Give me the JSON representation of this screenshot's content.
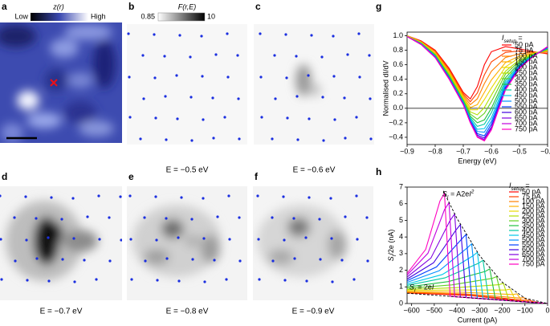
{
  "panels": [
    {
      "label": "a",
      "colorbar_title": "z(r)",
      "colorbar_low": "Low",
      "colorbar_high": "High"
    },
    {
      "label": "b",
      "colorbar_title": "F(r,E)",
      "colorbar_range": [
        0.85,
        10
      ],
      "caption": "E = −0.5 eV"
    },
    {
      "label": "c",
      "caption": "E = −0.6 eV"
    },
    {
      "label": "d",
      "caption": "E = −0.7 eV"
    },
    {
      "label": "e",
      "caption": "E = −0.8 eV"
    },
    {
      "label": "f",
      "caption": "E = −0.9 eV"
    }
  ],
  "chart_data": [
    {
      "type": "line",
      "panel_label": "g",
      "x_label": "Energy (eV)",
      "y_label": "Normalised dI/dV",
      "legend_title": [
        "I",
        "setup",
        " ="
      ],
      "legend": "right",
      "xlim": [
        -0.9,
        -0.4
      ],
      "ylim": [
        -0.5,
        1.05
      ],
      "xticks": [
        {
          "value": -0.9,
          "label": "−0.9"
        },
        {
          "value": -0.8,
          "label": "−0.8"
        },
        {
          "value": -0.7,
          "label": "−0.7"
        },
        {
          "value": -0.6,
          "label": "−0.6"
        },
        {
          "value": -0.5,
          "label": "−0.5"
        },
        {
          "value": -0.4,
          "label": "−0.4"
        }
      ],
      "yticks": [
        {
          "value": -0.4,
          "label": "−0.4"
        },
        {
          "value": -0.2,
          "label": "−0.2"
        },
        {
          "value": 0,
          "label": "0.0"
        },
        0.2,
        0.4,
        0.6,
        0.8,
        {
          "value": 1,
          "label": "1.0"
        }
      ],
      "hline": 0,
      "x": [
        -0.9,
        -0.85,
        -0.8,
        -0.75,
        -0.7,
        -0.675,
        -0.65,
        -0.625,
        -0.6,
        -0.55,
        -0.5,
        -0.45,
        -0.4
      ],
      "series": [
        {
          "name": "50 pA",
          "color": "#ff0000",
          "values": [
            1.0,
            0.93,
            0.8,
            0.55,
            0.22,
            0.13,
            0.3,
            0.6,
            0.78,
            0.85,
            0.82,
            0.78,
            0.75
          ]
        },
        {
          "name": "75 pA",
          "color": "#ff4000",
          "values": [
            1.0,
            0.92,
            0.79,
            0.53,
            0.2,
            0.09,
            0.21,
            0.46,
            0.64,
            0.77,
            0.79,
            0.77,
            0.76
          ]
        },
        {
          "name": "100 pA",
          "color": "#ff8000",
          "values": [
            1.0,
            0.92,
            0.78,
            0.51,
            0.18,
            0.05,
            0.13,
            0.34,
            0.51,
            0.7,
            0.75,
            0.77,
            0.78
          ]
        },
        {
          "name": "150 pA",
          "color": "#ffb000",
          "values": [
            1.0,
            0.91,
            0.76,
            0.5,
            0.16,
            0.01,
            0.05,
            0.22,
            0.39,
            0.63,
            0.72,
            0.76,
            0.79
          ]
        },
        {
          "name": "200 pA",
          "color": "#e8d800",
          "values": [
            1.0,
            0.91,
            0.75,
            0.48,
            0.14,
            -0.02,
            -0.02,
            0.12,
            0.28,
            0.57,
            0.7,
            0.75,
            0.8
          ]
        },
        {
          "name": "250 pA",
          "color": "#b0e000",
          "values": [
            0.99,
            0.9,
            0.74,
            0.47,
            0.12,
            -0.05,
            -0.09,
            0.01,
            0.18,
            0.51,
            0.67,
            0.75,
            0.81
          ]
        },
        {
          "name": "300 pA",
          "color": "#60d020",
          "values": [
            0.99,
            0.9,
            0.74,
            0.45,
            0.11,
            -0.08,
            -0.15,
            -0.07,
            0.09,
            0.47,
            0.65,
            0.74,
            0.81
          ]
        },
        {
          "name": "350 pA",
          "color": "#20c040",
          "values": [
            0.99,
            0.89,
            0.73,
            0.44,
            0.1,
            -0.11,
            -0.2,
            -0.16,
            0.0,
            0.42,
            0.63,
            0.74,
            0.82
          ]
        },
        {
          "name": "400 pA",
          "color": "#00c8a0",
          "values": [
            0.99,
            0.89,
            0.72,
            0.43,
            0.09,
            -0.13,
            -0.25,
            -0.22,
            -0.06,
            0.38,
            0.61,
            0.73,
            0.83
          ]
        },
        {
          "name": "450 pA",
          "color": "#00c8e8",
          "values": [
            0.99,
            0.89,
            0.72,
            0.42,
            0.08,
            -0.15,
            -0.29,
            -0.28,
            -0.13,
            0.35,
            0.59,
            0.73,
            0.83
          ]
        },
        {
          "name": "500 pA",
          "color": "#0090ff",
          "values": [
            0.99,
            0.89,
            0.71,
            0.42,
            0.07,
            -0.16,
            -0.32,
            -0.33,
            -0.18,
            0.32,
            0.58,
            0.73,
            0.84
          ]
        },
        {
          "name": "550 pA",
          "color": "#0040ff",
          "values": [
            0.99,
            0.88,
            0.71,
            0.41,
            0.06,
            -0.18,
            -0.35,
            -0.38,
            -0.22,
            0.29,
            0.57,
            0.72,
            0.84
          ]
        },
        {
          "name": "600 pA",
          "color": "#4000e0",
          "values": [
            0.99,
            0.88,
            0.7,
            0.41,
            0.06,
            -0.19,
            -0.37,
            -0.41,
            -0.26,
            0.27,
            0.56,
            0.72,
            0.85
          ]
        },
        {
          "name": "650 pA",
          "color": "#8000e0",
          "values": [
            0.99,
            0.88,
            0.7,
            0.4,
            0.05,
            -0.19,
            -0.39,
            -0.43,
            -0.28,
            0.26,
            0.56,
            0.72,
            0.85
          ]
        },
        {
          "name": "700 pA",
          "color": "#c000e0",
          "values": [
            0.99,
            0.88,
            0.7,
            0.4,
            0.05,
            -0.2,
            -0.39,
            -0.44,
            -0.29,
            0.26,
            0.55,
            0.72,
            0.85
          ]
        },
        {
          "name": "750 pA",
          "color": "#ff00c0",
          "values": [
            0.99,
            0.88,
            0.7,
            0.4,
            0.05,
            -0.2,
            -0.4,
            -0.45,
            -0.3,
            0.25,
            0.55,
            0.72,
            0.85
          ]
        }
      ]
    },
    {
      "type": "line",
      "panel_label": "h",
      "x_label": "Current (pA)",
      "y_label": [
        "S",
        "I",
        "/2e (nA)"
      ],
      "legend_title": [
        "I",
        "setup",
        " ="
      ],
      "legend": "upper right",
      "xlim": [
        -620,
        0
      ],
      "ylim": [
        0,
        7
      ],
      "xticks": [
        {
          "value": -600,
          "label": "−600"
        },
        {
          "value": -500,
          "label": "−500"
        },
        {
          "value": -400,
          "label": "−400"
        },
        {
          "value": -300,
          "label": "−300"
        },
        {
          "value": -200,
          "label": "−200"
        },
        {
          "value": -100,
          "label": "−100"
        },
        0
      ],
      "yticks": [
        0,
        1,
        2,
        3,
        4,
        5,
        6,
        7
      ],
      "annotations": [
        [
          "S",
          "I",
          " = A2e",
          "I",
          "2"
        ],
        [
          "S",
          "I",
          " = 2e",
          "I"
        ]
      ],
      "fit_lines": [
        {
          "x": [
            -460,
            -400,
            -300,
            -200,
            -100,
            0
          ],
          "values": [
            6.77,
            5.12,
            2.88,
            1.28,
            0.32,
            0
          ]
        },
        {
          "x": [
            -620,
            0
          ],
          "values": [
            0.62,
            0
          ]
        }
      ],
      "series": [
        {
          "name": "50 pA",
          "color": "#ff0000",
          "x": [
            -620,
            -338,
            -75,
            -55,
            -30,
            0
          ],
          "values": [
            0.64,
            0.48,
            0.09,
            0.1,
            0.03,
            0
          ]
        },
        {
          "name": "75 pA",
          "color": "#ff4000",
          "x": [
            -620,
            -350,
            -100,
            -80,
            -55,
            0
          ],
          "values": [
            0.66,
            0.52,
            0.19,
            0.2,
            0.06,
            0
          ]
        },
        {
          "name": "100 pA",
          "color": "#ff8000",
          "x": [
            -620,
            -363,
            -125,
            -105,
            -80,
            0
          ],
          "values": [
            0.68,
            0.58,
            0.33,
            0.35,
            0.08,
            0
          ]
        },
        {
          "name": "150 pA",
          "color": "#ffb000",
          "x": [
            -620,
            -378,
            -155,
            -135,
            -110,
            0
          ],
          "values": [
            0.72,
            0.68,
            0.54,
            0.58,
            0.11,
            0
          ]
        },
        {
          "name": "200 pA",
          "color": "#e8d800",
          "x": [
            -620,
            -393,
            -185,
            -165,
            -140,
            0
          ],
          "values": [
            0.78,
            0.81,
            0.81,
            0.87,
            0.14,
            0
          ]
        },
        {
          "name": "250 pA",
          "color": "#b0e000",
          "x": [
            -620,
            -408,
            -215,
            -195,
            -170,
            0
          ],
          "values": [
            0.84,
            0.95,
            1.13,
            1.22,
            0.17,
            0
          ]
        },
        {
          "name": "300 pA",
          "color": "#60d020",
          "x": [
            -620,
            -423,
            -245,
            -225,
            -200,
            0
          ],
          "values": [
            0.91,
            1.12,
            1.51,
            1.62,
            0.2,
            0
          ]
        },
        {
          "name": "350 pA",
          "color": "#20c040",
          "x": [
            -620,
            -438,
            -275,
            -255,
            -230,
            0
          ],
          "values": [
            0.99,
            1.32,
            1.93,
            2.08,
            0.23,
            0
          ]
        },
        {
          "name": "400 pA",
          "color": "#00c8a0",
          "x": [
            -620,
            -453,
            -305,
            -285,
            -260,
            0
          ],
          "values": [
            1.09,
            1.54,
            2.42,
            2.6,
            0.26,
            0
          ]
        },
        {
          "name": "450 pA",
          "color": "#00c8e8",
          "x": [
            -620,
            -465,
            -330,
            -310,
            -285,
            0
          ],
          "values": [
            1.17,
            1.74,
            2.86,
            3.08,
            0.29,
            0
          ]
        },
        {
          "name": "500 pA",
          "color": "#0090ff",
          "x": [
            -620,
            -478,
            -355,
            -335,
            -310,
            0
          ],
          "values": [
            1.27,
            1.97,
            3.34,
            3.59,
            0.31,
            0
          ]
        },
        {
          "name": "550 pA",
          "color": "#0040ff",
          "x": [
            -620,
            -490,
            -380,
            -360,
            -335,
            0
          ],
          "values": [
            1.37,
            2.2,
            3.86,
            4.15,
            0.34,
            0
          ]
        },
        {
          "name": "600 pA",
          "color": "#4000e0",
          "x": [
            -620,
            -503,
            -405,
            -385,
            -360,
            0
          ],
          "values": [
            1.47,
            2.45,
            4.41,
            4.74,
            0.36,
            0
          ]
        },
        {
          "name": "650 pA",
          "color": "#8000e0",
          "x": [
            -620,
            -515,
            -430,
            -410,
            -385,
            0
          ],
          "values": [
            1.59,
            2.73,
            5.0,
            5.38,
            0.39,
            0
          ]
        },
        {
          "name": "700 pA",
          "color": "#c000e0",
          "x": [
            -620,
            -528,
            -455,
            -435,
            -410,
            0
          ],
          "values": [
            1.71,
            3.02,
            5.64,
            6.06,
            0.41,
            0
          ]
        },
        {
          "name": "750 pA",
          "color": "#ff00c0",
          "x": [
            -620,
            -538,
            -475,
            -455,
            -430,
            0
          ],
          "values": [
            1.81,
            3.25,
            6.16,
            6.62,
            0.43,
            0
          ]
        }
      ]
    }
  ]
}
